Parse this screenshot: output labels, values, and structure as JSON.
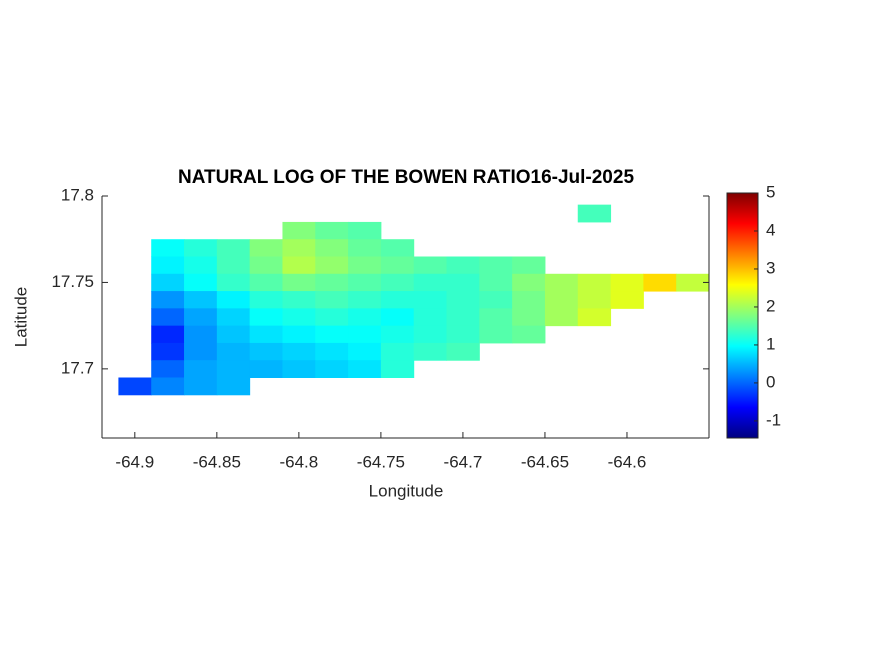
{
  "chart_data": {
    "type": "heatmap",
    "title": "NATURAL LOG OF THE BOWEN RATIO16-Jul-2025",
    "xlabel": "Longitude",
    "ylabel": "Latitude",
    "xlim": [
      -64.92,
      -64.55
    ],
    "ylim": [
      17.66,
      17.8
    ],
    "xticks": [
      -64.9,
      -64.85,
      -64.8,
      -64.75,
      -64.7,
      -64.65,
      -64.6
    ],
    "yticks": [
      17.7,
      17.75,
      17.8
    ],
    "cell": [
      0.02,
      0.01
    ],
    "colormap": "jet",
    "clim": [
      -1.45,
      5
    ],
    "cticks": [
      -1,
      0,
      1,
      2,
      3,
      4,
      5
    ],
    "rows": [
      {
        "y": 17.79,
        "x": [
          -64.62
        ],
        "values": [
          1.4
        ]
      },
      {
        "y": 17.78,
        "x": [
          -64.8,
          -64.78,
          -64.76
        ],
        "values": [
          1.8,
          1.6,
          1.5
        ]
      },
      {
        "y": 17.77,
        "x": [
          -64.88,
          -64.86,
          -64.84,
          -64.82,
          -64.8,
          -64.78,
          -64.76,
          -64.74
        ],
        "values": [
          1.0,
          1.2,
          1.4,
          1.8,
          2.0,
          1.8,
          1.6,
          1.5
        ]
      },
      {
        "y": 17.76,
        "x": [
          -64.88,
          -64.86,
          -64.84,
          -64.82,
          -64.8,
          -64.78,
          -64.76,
          -64.74,
          -64.72,
          -64.7,
          -64.68,
          -64.66
        ],
        "values": [
          0.9,
          1.1,
          1.4,
          1.7,
          2.1,
          1.9,
          1.7,
          1.6,
          1.5,
          1.4,
          1.5,
          1.6
        ]
      },
      {
        "y": 17.75,
        "x": [
          -64.88,
          -64.86,
          -64.84,
          -64.82,
          -64.8,
          -64.78,
          -64.76,
          -64.74,
          -64.72,
          -64.7,
          -64.68,
          -64.66,
          -64.64,
          -64.62,
          -64.6,
          -64.58,
          -64.56
        ],
        "values": [
          0.7,
          1.0,
          1.3,
          1.5,
          1.7,
          1.6,
          1.5,
          1.4,
          1.3,
          1.3,
          1.5,
          1.8,
          2.0,
          2.2,
          2.4,
          2.8,
          2.2
        ]
      },
      {
        "y": 17.74,
        "x": [
          -64.88,
          -64.86,
          -64.84,
          -64.82,
          -64.8,
          -64.78,
          -64.76,
          -64.74,
          -64.72,
          -64.7,
          -64.68,
          -64.66,
          -64.64,
          -64.62,
          -64.6
        ],
        "values": [
          0.3,
          0.6,
          0.9,
          1.2,
          1.3,
          1.4,
          1.3,
          1.2,
          1.2,
          1.3,
          1.4,
          1.7,
          2.0,
          2.2,
          2.4
        ]
      },
      {
        "y": 17.73,
        "x": [
          -64.88,
          -64.86,
          -64.84,
          -64.82,
          -64.8,
          -64.78,
          -64.76,
          -64.74,
          -64.72,
          -64.7,
          -64.68,
          -64.66,
          -64.64,
          -64.62
        ],
        "values": [
          0.0,
          0.4,
          0.7,
          1.0,
          1.1,
          1.2,
          1.1,
          1.0,
          1.2,
          1.3,
          1.5,
          1.7,
          2.0,
          2.3
        ]
      },
      {
        "y": 17.72,
        "x": [
          -64.88,
          -64.86,
          -64.84,
          -64.82,
          -64.8,
          -64.78,
          -64.76,
          -64.74,
          -64.72,
          -64.7,
          -64.68,
          -64.66
        ],
        "values": [
          -0.4,
          0.3,
          0.6,
          0.8,
          0.9,
          1.0,
          1.0,
          1.1,
          1.2,
          1.3,
          1.5,
          1.6
        ]
      },
      {
        "y": 17.71,
        "x": [
          -64.88,
          -64.86,
          -64.84,
          -64.82,
          -64.8,
          -64.78,
          -64.76,
          -64.74,
          -64.72,
          -64.7
        ],
        "values": [
          -0.3,
          0.3,
          0.5,
          0.6,
          0.7,
          0.8,
          0.9,
          1.2,
          1.3,
          1.4
        ]
      },
      {
        "y": 17.7,
        "x": [
          -64.88,
          -64.86,
          -64.84,
          -64.82,
          -64.8,
          -64.78,
          -64.76,
          -64.74
        ],
        "values": [
          0.0,
          0.4,
          0.5,
          0.5,
          0.6,
          0.7,
          0.8,
          1.2
        ]
      },
      {
        "y": 17.69,
        "x": [
          -64.9,
          -64.88,
          -64.86,
          -64.84
        ],
        "values": [
          -0.2,
          0.2,
          0.4,
          0.5
        ]
      }
    ]
  }
}
